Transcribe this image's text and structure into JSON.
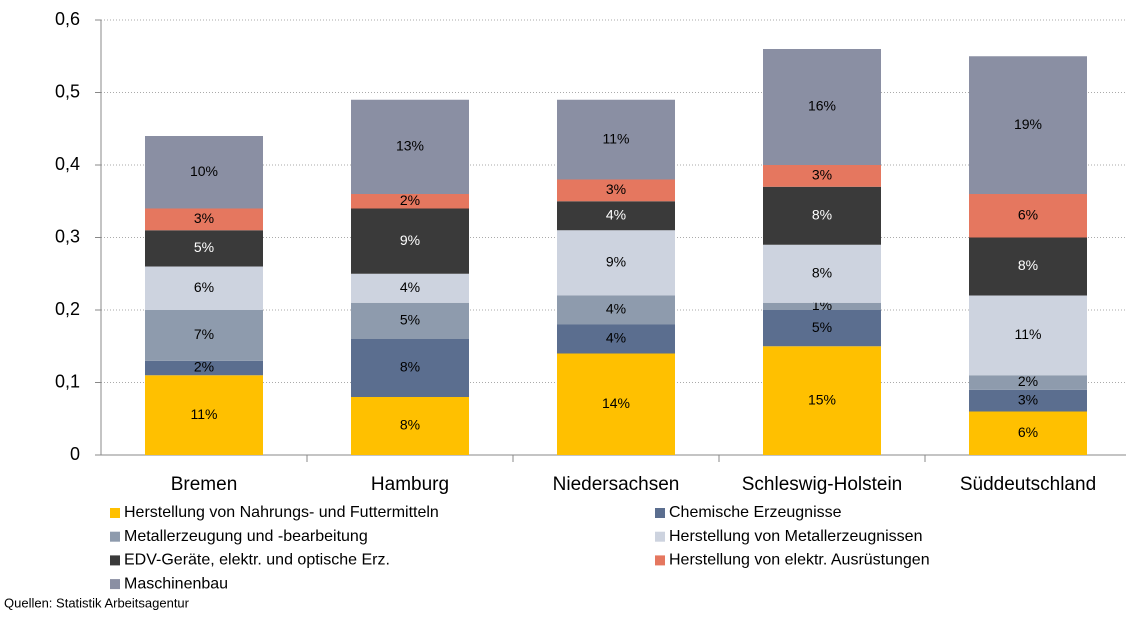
{
  "chart_data": {
    "type": "stacked_bar",
    "categories": [
      "Bremen",
      "Hamburg",
      "Niedersachsen",
      "Schleswig-Holstein",
      "Süddeutschland"
    ],
    "series": [
      {
        "name": "Herstellung von Nahrungs- und Futtermitteln",
        "color": "#FFC000",
        "values": [
          0.11,
          0.08,
          0.14,
          0.15,
          0.06
        ],
        "value_labels": [
          "11%",
          "8%",
          "14%",
          "15%",
          "6%"
        ]
      },
      {
        "name": "Chemische Erzeugnisse",
        "color": "#5B6E8F",
        "values": [
          0.02,
          0.08,
          0.04,
          0.05,
          0.03
        ],
        "value_labels": [
          "2%",
          "8%",
          "4%",
          "5%",
          "3%"
        ]
      },
      {
        "name": "Metallerzeugung und -bearbeitung",
        "color": "#8E9BAD",
        "values": [
          0.07,
          0.05,
          0.04,
          0.01,
          0.02
        ],
        "value_labels": [
          "7%",
          "5%",
          "4%",
          "1%",
          "2%"
        ]
      },
      {
        "name": "Herstellung von Metallerzeugnissen",
        "color": "#CDD3DF",
        "values": [
          0.06,
          0.04,
          0.09,
          0.08,
          0.11
        ],
        "value_labels": [
          "6%",
          "4%",
          "9%",
          "8%",
          "11%"
        ]
      },
      {
        "name": "EDV-Geräte, elektr. und optische Erz.",
        "color": "#3A3A3A",
        "values": [
          0.05,
          0.09,
          0.04,
          0.08,
          0.08
        ],
        "value_labels": [
          "5%",
          "9%",
          "4%",
          "8%",
          "8%"
        ]
      },
      {
        "name": "Herstellung von elektr. Ausrüstungen",
        "color": "#E5775F",
        "values": [
          0.03,
          0.02,
          0.03,
          0.03,
          0.06
        ],
        "value_labels": [
          "3%",
          "2%",
          "3%",
          "3%",
          "6%"
        ]
      },
      {
        "name": "Maschinenbau",
        "color": "#8A8FA3",
        "values": [
          0.1,
          0.13,
          0.11,
          0.16,
          0.19
        ],
        "value_labels": [
          "10%",
          "13%",
          "11%",
          "16%",
          "19%"
        ]
      }
    ],
    "ylim": [
      0,
      0.6
    ],
    "yticks": [
      0,
      {
        "value": 0.1,
        "label": "0,1"
      },
      {
        "value": 0.2,
        "label": "0,2"
      },
      {
        "value": 0.3,
        "label": "0,3"
      },
      {
        "value": 0.4,
        "label": "0,4"
      },
      {
        "value": 0.5,
        "label": "0,5"
      },
      {
        "value": 0.6,
        "label": "0,6"
      }
    ],
    "grid": true,
    "source": "Quellen: Statistik Arbeitsagentur"
  }
}
